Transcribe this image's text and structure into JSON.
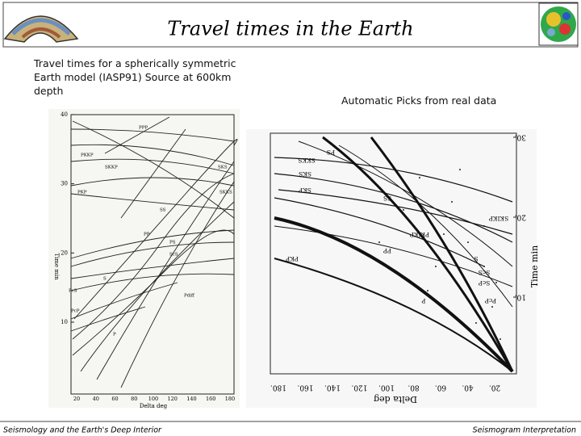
{
  "header": {
    "title": "Travel times in the Earth"
  },
  "left_panel": {
    "caption_lines": [
      "Travel times for a spherically symmetric",
      "Earth model (IASP91) Source at 600km",
      "depth"
    ],
    "figure": {
      "y_label": "Time min",
      "x_label": "Delta deg",
      "yticks": [
        "10",
        "20",
        "30",
        "40"
      ],
      "xticks": [
        "20",
        "40",
        "60",
        "80",
        "100",
        "120",
        "140",
        "160",
        "180"
      ],
      "phases": [
        "PPP",
        "PKKP",
        "SKKP",
        "SKS",
        "SKKS",
        "PKP",
        "SS",
        "PP",
        "PS",
        "ScS",
        "PcS",
        "PcP",
        "S",
        "P",
        "Pdiff"
      ]
    }
  },
  "right_panel": {
    "caption": "Automatic Picks from real data",
    "figure": {
      "y_label": "Time min",
      "x_label": "Delta deg",
      "yticks": [
        "10.",
        "20.",
        "30."
      ],
      "xticks": [
        "180.",
        "160.",
        "140.",
        "120.",
        "100.",
        "80.",
        "60.",
        "40.",
        "20."
      ],
      "phases": [
        "PS",
        "SKKS",
        "SKS",
        "SKP",
        "SS",
        "SKIKP",
        "PKIKP",
        "PP",
        "PKP",
        "S",
        "ScS",
        "ScP",
        "PcP",
        "P"
      ]
    }
  },
  "footer": {
    "left": "Seismology and the Earth's Deep Interior",
    "right": "Seismogram Interpretation"
  }
}
